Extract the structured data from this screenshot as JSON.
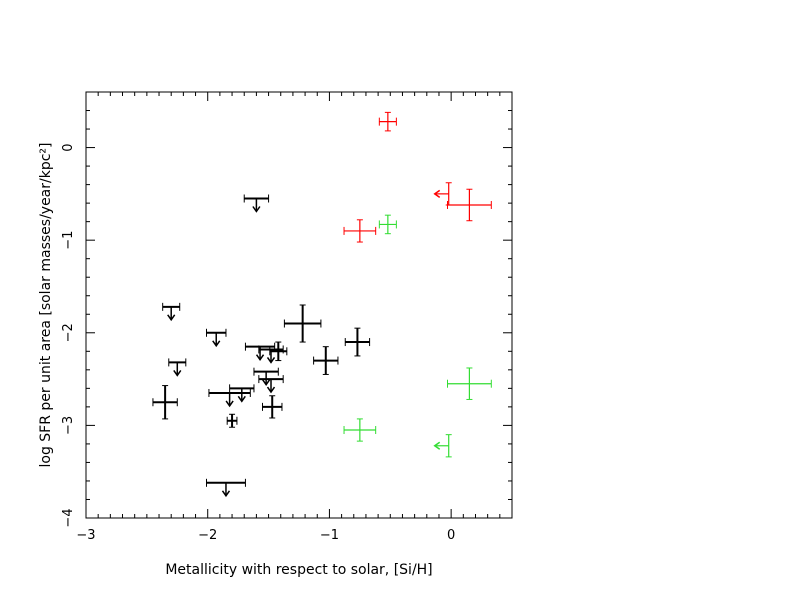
{
  "chart_data": {
    "type": "scatter",
    "xlabel": "Metallicity with respect to solar, [Si/H]",
    "ylabel": "log SFR per unit area [solar masses/year/kpc²]",
    "xlim": [
      -3,
      0.5
    ],
    "ylim": [
      -4,
      0.6
    ],
    "x_ticks": [
      -3,
      -2,
      -1,
      0
    ],
    "y_ticks": [
      0,
      -1,
      -2,
      -3,
      -4
    ],
    "x_tick_labels": [
      "−3",
      "−2",
      "−1",
      "0"
    ],
    "y_tick_labels": [
      "0",
      "−1",
      "−2",
      "−3",
      "−4"
    ],
    "grid": false,
    "colors": {
      "black": "#000000",
      "red": "#ff0000",
      "green": "#33dd33"
    },
    "series": [
      {
        "color": "#000000",
        "points": [
          {
            "x": -2.35,
            "y": -2.75,
            "xerr": 0.1,
            "yerr": 0.18
          },
          {
            "x": -1.22,
            "y": -1.9,
            "xerr": 0.15,
            "yerr": 0.2
          },
          {
            "x": -1.03,
            "y": -2.3,
            "xerr": 0.1,
            "yerr": 0.15
          },
          {
            "x": -0.77,
            "y": -2.1,
            "xerr": 0.1,
            "yerr": 0.15
          },
          {
            "x": -1.42,
            "y": -2.2,
            "xerr": 0.07,
            "yerr": 0.1
          },
          {
            "x": -1.47,
            "y": -2.8,
            "xerr": 0.08,
            "yerr": 0.12
          },
          {
            "x": -1.8,
            "y": -2.95,
            "xerr": 0.04,
            "yerr": 0.07
          }
        ],
        "upper_limits": [
          {
            "x": -1.6,
            "y": -0.55,
            "xerr": 0.1
          },
          {
            "x": -2.3,
            "y": -1.72,
            "xerr": 0.07
          },
          {
            "x": -1.93,
            "y": -2.0,
            "xerr": 0.08
          },
          {
            "x": -2.25,
            "y": -2.32,
            "xerr": 0.07
          },
          {
            "x": -1.57,
            "y": -2.15,
            "xerr": 0.12
          },
          {
            "x": -1.48,
            "y": -2.18,
            "xerr": 0.1
          },
          {
            "x": -1.52,
            "y": -2.42,
            "xerr": 0.1
          },
          {
            "x": -1.72,
            "y": -2.6,
            "xerr": 0.1
          },
          {
            "x": -1.82,
            "y": -2.65,
            "xerr": 0.17
          },
          {
            "x": -1.48,
            "y": -2.5,
            "xerr": 0.1
          },
          {
            "x": -1.85,
            "y": -3.62,
            "xerr": 0.16
          }
        ]
      },
      {
        "color": "#ff0000",
        "points": [
          {
            "x": -0.52,
            "y": 0.28,
            "xerr": 0.07,
            "yerr": 0.1
          },
          {
            "x": -0.75,
            "y": -0.9,
            "xerr": 0.13,
            "yerr": 0.12
          },
          {
            "x": 0.15,
            "y": -0.62,
            "xerr": 0.18,
            "yerr": 0.17
          }
        ],
        "left_limits": [
          {
            "x": -0.02,
            "y": -0.5,
            "yerr": 0.12
          }
        ]
      },
      {
        "color": "#33dd33",
        "points": [
          {
            "x": -0.52,
            "y": -0.83,
            "xerr": 0.07,
            "yerr": 0.1
          },
          {
            "x": 0.15,
            "y": -2.55,
            "xerr": 0.18,
            "yerr": 0.17
          },
          {
            "x": -0.75,
            "y": -3.05,
            "xerr": 0.13,
            "yerr": 0.12
          }
        ],
        "left_limits": [
          {
            "x": -0.02,
            "y": -3.22,
            "yerr": 0.12
          }
        ]
      }
    ]
  }
}
